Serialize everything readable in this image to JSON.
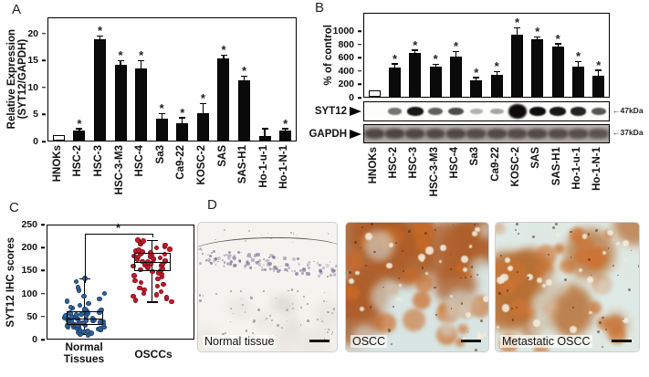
{
  "panels": {
    "a": "A",
    "b": "B",
    "c": "C",
    "d": "D"
  },
  "colors": {
    "bar_fill": "#0a0a0a",
    "open_bar_fill": "#ffffff",
    "axis": "#000000",
    "normal_points": "#2f64a0",
    "oscc_points": "#c91a2b",
    "ihc_stain": "#bf5a22",
    "hematoxylin": "#6b5a8c"
  },
  "chart_data": [
    {
      "panel": "A",
      "type": "bar",
      "ylabel_lines": [
        "Relative Expression",
        "(SYT12/GAPDH)"
      ],
      "categories": [
        "HNOKs",
        "HSC-2",
        "HSC-3",
        "HSC-3-M3",
        "HSC-4",
        "Sa3",
        "Ca9-22",
        "KOSC-2",
        "SAS",
        "SAS-H1",
        "Ho-1-u-1",
        "Ho-1-N-1"
      ],
      "values": [
        1.0,
        1.9,
        19.0,
        14.3,
        13.5,
        4.1,
        3.3,
        5.1,
        15.5,
        11.3,
        0.9,
        1.9
      ],
      "errors": [
        0,
        0.2,
        0.5,
        0.6,
        1.4,
        0.9,
        0.9,
        1.7,
        0.4,
        0.7,
        1.2,
        0.25
      ],
      "significant": [
        false,
        true,
        true,
        true,
        true,
        true,
        true,
        true,
        true,
        true,
        false,
        true
      ],
      "sig_symbol": "*",
      "open_bar_index": 0,
      "yticks": [
        0,
        5,
        10,
        15,
        20
      ],
      "ylim": [
        0,
        23
      ],
      "grid": false,
      "legend": false
    },
    {
      "panel": "B",
      "type": "bar",
      "ylabel": "% of control",
      "categories": [
        "HNOKs",
        "HSC-2",
        "HSC-3",
        "HSC-3-M3",
        "HSC-4",
        "Sa3",
        "Ca9-22",
        "KOSC-2",
        "SAS",
        "SAS-H1",
        "Ho-1-u-1",
        "Ho-1-N-1"
      ],
      "values": [
        100,
        450,
        680,
        465,
        620,
        260,
        340,
        960,
        890,
        780,
        470,
        330
      ],
      "errors": [
        0,
        45,
        30,
        25,
        70,
        25,
        35,
        95,
        25,
        25,
        65,
        70
      ],
      "significant": [
        false,
        true,
        true,
        true,
        true,
        true,
        true,
        true,
        true,
        true,
        true,
        true
      ],
      "sig_symbol": "*",
      "open_bar_index": 0,
      "yticks": [
        0,
        200,
        400,
        600,
        800,
        1000
      ],
      "ylim": [
        0,
        1280
      ],
      "grid": false,
      "legend": false,
      "blot_rows": [
        {
          "label": "SYT12",
          "size_marker": "←47kDa",
          "band_intensities": [
            0,
            0.45,
            0.9,
            0.55,
            0.65,
            0.15,
            0.22,
            1,
            0.95,
            0.9,
            0.85,
            0.6
          ]
        },
        {
          "label": "GAPDH",
          "size_marker": "←37kDa",
          "band_intensities": [
            0.8,
            0.85,
            0.8,
            0.75,
            0.8,
            0.7,
            0.75,
            0.72,
            0.75,
            0.7,
            0.65,
            0.55
          ]
        }
      ]
    },
    {
      "panel": "C",
      "type": "box",
      "ylabel": "SYT12 IHC scores",
      "yticks": [
        0,
        50,
        100,
        150,
        200,
        250
      ],
      "ylim": [
        0,
        250
      ],
      "grid": false,
      "sig_symbol": "*",
      "bracket": {
        "y": 232,
        "left_drop_to": 122,
        "right_drop_to": 224
      },
      "group_pos": [
        0.253,
        0.716
      ],
      "groups": [
        {
          "label_lines": [
            "Normal",
            "Tissues"
          ],
          "point_color": "#2f64a0",
          "box": {
            "whisker_low": 10,
            "q1": 30,
            "median": 45,
            "q3": 60,
            "whisker_high": 133
          },
          "points": [
            8,
            10,
            12,
            14,
            15,
            16,
            18,
            19,
            20,
            21,
            22,
            23,
            24,
            25,
            25,
            26,
            27,
            28,
            29,
            30,
            30,
            31,
            32,
            33,
            34,
            35,
            35,
            36,
            37,
            38,
            39,
            40,
            40,
            41,
            42,
            43,
            44,
            45,
            45,
            46,
            47,
            48,
            50,
            50,
            52,
            53,
            55,
            56,
            58,
            60,
            62,
            64,
            66,
            68,
            70,
            74,
            78,
            83,
            88,
            94,
            100,
            107,
            113,
            126,
            133
          ]
        },
        {
          "label_lines": [
            "OSCCs"
          ],
          "point_color": "#c91a2b",
          "box": {
            "whisker_low": 82,
            "q1": 150,
            "median": 170,
            "q3": 190,
            "whisker_high": 218
          },
          "points": [
            82,
            85,
            88,
            91,
            94,
            97,
            100,
            104,
            108,
            112,
            116,
            120,
            124,
            128,
            132,
            136,
            139,
            142,
            145,
            148,
            150,
            152,
            154,
            156,
            158,
            160,
            161,
            162,
            164,
            165,
            166,
            168,
            169,
            170,
            171,
            172,
            174,
            175,
            176,
            178,
            180,
            181,
            182,
            184,
            186,
            188,
            190,
            192,
            194,
            196,
            198,
            201,
            204,
            207,
            210,
            213,
            216,
            218
          ]
        }
      ]
    }
  ],
  "histology": {
    "panels": [
      {
        "label": "Normal tissue",
        "base_color": "#f5f3ef",
        "stain_color": "#6b5a8c",
        "scale_bar": true
      },
      {
        "label": "OSCC",
        "base_color": "#d8e5e3",
        "stain_color": "#bf5a22",
        "scale_bar": true
      },
      {
        "label": "Metastatic OSCC",
        "base_color": "#dfe9e4",
        "stain_color": "#b85d28",
        "scale_bar": true
      }
    ]
  }
}
